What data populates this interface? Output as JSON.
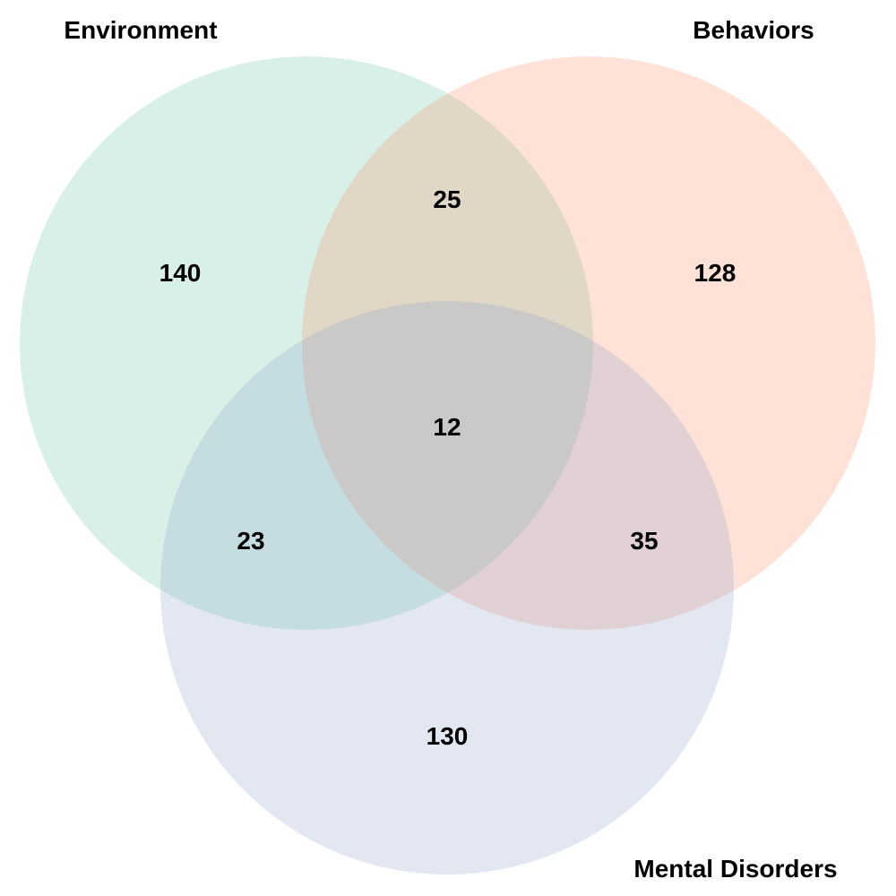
{
  "sets": [
    {
      "id": "environment",
      "label": "Environment",
      "color": "#66c2a5"
    },
    {
      "id": "behaviors",
      "label": "Behaviors",
      "color": "#fc8d62"
    },
    {
      "id": "mental_disorders",
      "label": "Mental Disorders",
      "color": "#8da0cb"
    }
  ],
  "regions": {
    "environment_only": 140,
    "behaviors_only": 128,
    "mental_disorders_only": 130,
    "environment_behaviors": 25,
    "environment_mental_disorders": 23,
    "behaviors_mental_disorders": 35,
    "all_three": 12
  }
}
